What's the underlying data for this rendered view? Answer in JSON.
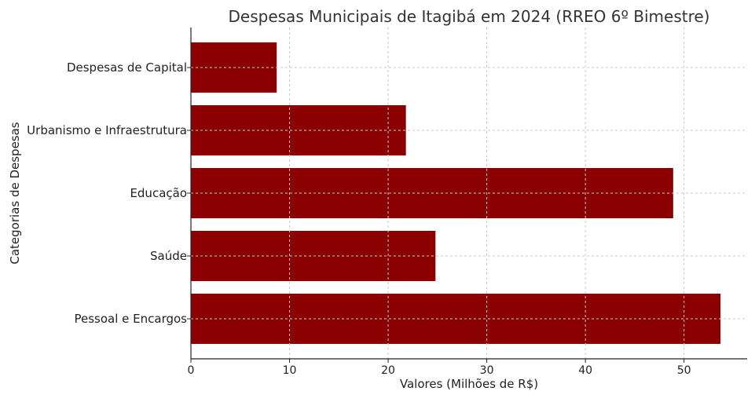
{
  "chart_data": {
    "type": "bar",
    "orientation": "horizontal",
    "title": "Despesas Municipais de Itagibá em 2024 (RREO 6º Bimestre)",
    "xlabel": "Valores (Milhões de R$)",
    "ylabel": "Categorias de Despesas",
    "categories": [
      "Pessoal e Encargos",
      "Saúde",
      "Educação",
      "Urbanismo e Infraestrutura",
      "Despesas de Capital"
    ],
    "values": [
      53.7,
      24.8,
      48.9,
      21.8,
      8.7
    ],
    "xlim": [
      0,
      56.4
    ],
    "xticks": [
      "0",
      "10",
      "20",
      "30",
      "40",
      "50"
    ],
    "grid": true,
    "bar_color": "#8b0000"
  }
}
